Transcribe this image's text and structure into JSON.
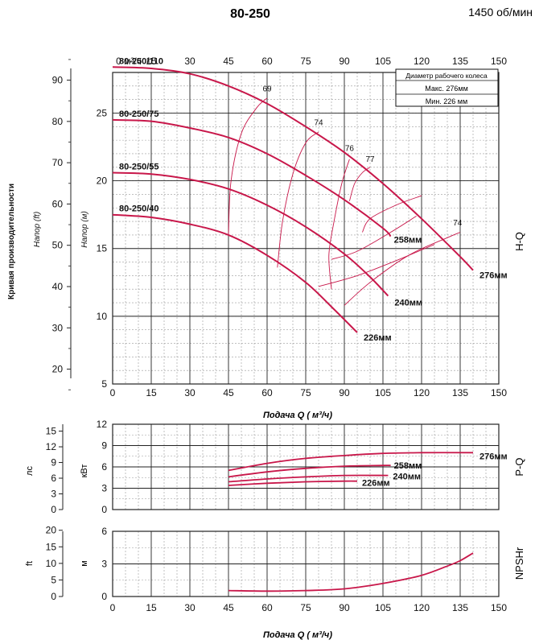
{
  "header": {
    "title": "80-250",
    "speed": "1450 об/мин"
  },
  "colors": {
    "curve": "#c8174a",
    "grid": "#222222",
    "minor": "#9a9a9a"
  },
  "legend_box": {
    "title": "Диаметр рабочего колеса",
    "max": "Макс.  276мм",
    "min": "Мин.   226 мм"
  },
  "labels": {
    "side_title": "Кривая производительности",
    "napor_ft": "Напор (ft)",
    "napor_m": "Напор (м)",
    "hq": "H-Q",
    "pq": "P-Q",
    "npsh": "NPSHr",
    "xlabel_main": "Подача Q ( м³/ч)",
    "xlabel_bottom": "Подача Q ( м³/ч)",
    "top_axis_unit": "0 м³/ч",
    "unit_ls": "лс",
    "unit_kvt": "кВт",
    "unit_ft": "ft",
    "unit_m": "м"
  },
  "chart_data": [
    {
      "type": "line",
      "name_panel": "H-Q",
      "xlim": [
        0,
        150
      ],
      "ylim": [
        5,
        28
      ],
      "x_ticks": [
        "0",
        "15",
        "30",
        "45",
        "60",
        "75",
        "90",
        "105",
        "120",
        "135",
        "150"
      ],
      "y_ticks_m": [
        "5",
        "10",
        "15",
        "20",
        "25"
      ],
      "y_ticks_ft": [
        "20",
        "30",
        "40",
        "50",
        "60",
        "70",
        "80",
        "90"
      ],
      "series": [
        {
          "name": "276мм",
          "impeller_label": "80-250/110",
          "points": [
            [
              0,
              28.4
            ],
            [
              15,
              28.3
            ],
            [
              30,
              27.9
            ],
            [
              45,
              27.0
            ],
            [
              60,
              25.7
            ],
            [
              75,
              24.0
            ],
            [
              90,
              22.1
            ],
            [
              105,
              19.8
            ],
            [
              120,
              17.2
            ],
            [
              135,
              14.4
            ],
            [
              140,
              13.4
            ]
          ]
        },
        {
          "name": "258мм",
          "impeller_label": "80-250/75",
          "points": [
            [
              0,
              24.5
            ],
            [
              15,
              24.4
            ],
            [
              30,
              23.9
            ],
            [
              45,
              23.2
            ],
            [
              60,
              22.0
            ],
            [
              75,
              20.4
            ],
            [
              90,
              18.6
            ],
            [
              105,
              16.5
            ],
            [
              108,
              15.9
            ]
          ]
        },
        {
          "name": "240мм",
          "impeller_label": "80-250/55",
          "points": [
            [
              0,
              20.6
            ],
            [
              15,
              20.5
            ],
            [
              30,
              20.1
            ],
            [
              45,
              19.4
            ],
            [
              60,
              18.2
            ],
            [
              75,
              16.6
            ],
            [
              90,
              14.6
            ],
            [
              100,
              12.9
            ],
            [
              107,
              11.5
            ]
          ]
        },
        {
          "name": "226мм",
          "impeller_label": "80-250/40",
          "points": [
            [
              0,
              17.5
            ],
            [
              15,
              17.3
            ],
            [
              30,
              16.8
            ],
            [
              45,
              16.0
            ],
            [
              60,
              14.5
            ],
            [
              75,
              12.5
            ],
            [
              85,
              10.7
            ],
            [
              95,
              8.8
            ]
          ]
        }
      ],
      "efficiency_labels": [
        "69",
        "74",
        "76",
        "77",
        "74"
      ]
    },
    {
      "type": "line",
      "name_panel": "P-Q",
      "xlim": [
        0,
        150
      ],
      "ylim": [
        0,
        12
      ],
      "y_ticks_kvt": [
        "0",
        "3",
        "6",
        "9",
        "12"
      ],
      "y_ticks_ls": [
        "0",
        "3",
        "6",
        "9",
        "12",
        "15"
      ],
      "series": [
        {
          "name": "276мм",
          "points": [
            [
              45,
              5.5
            ],
            [
              60,
              6.5
            ],
            [
              75,
              7.2
            ],
            [
              90,
              7.6
            ],
            [
              105,
              7.9
            ],
            [
              120,
              8.0
            ],
            [
              140,
              8.0
            ]
          ]
        },
        {
          "name": "258мм",
          "points": [
            [
              45,
              4.6
            ],
            [
              60,
              5.3
            ],
            [
              75,
              5.8
            ],
            [
              90,
              6.1
            ],
            [
              105,
              6.2
            ],
            [
              108,
              6.2
            ]
          ]
        },
        {
          "name": "240мм",
          "points": [
            [
              45,
              3.9
            ],
            [
              60,
              4.3
            ],
            [
              75,
              4.6
            ],
            [
              90,
              4.8
            ],
            [
              107,
              4.8
            ]
          ]
        },
        {
          "name": "226мм",
          "points": [
            [
              45,
              3.4
            ],
            [
              60,
              3.7
            ],
            [
              75,
              3.9
            ],
            [
              90,
              4.0
            ],
            [
              95,
              4.0
            ]
          ]
        }
      ]
    },
    {
      "type": "line",
      "name_panel": "NPSHr",
      "xlim": [
        0,
        150
      ],
      "ylim": [
        0,
        6
      ],
      "y_ticks_m": [
        "0",
        "3",
        "6"
      ],
      "y_ticks_ft": [
        "0",
        "5",
        "10",
        "15",
        "20"
      ],
      "series": [
        {
          "name": "NPSHr",
          "points": [
            [
              45,
              0.55
            ],
            [
              60,
              0.5
            ],
            [
              75,
              0.55
            ],
            [
              90,
              0.7
            ],
            [
              105,
              1.2
            ],
            [
              120,
              1.95
            ],
            [
              130,
              2.8
            ],
            [
              135,
              3.3
            ],
            [
              140,
              4.0
            ]
          ]
        }
      ]
    }
  ]
}
